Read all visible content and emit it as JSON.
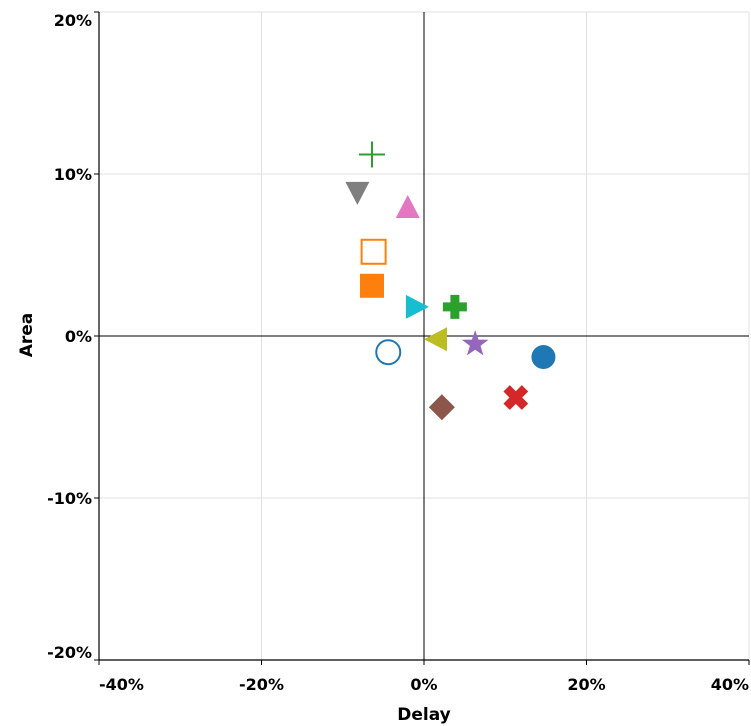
{
  "chart_data": {
    "type": "scatter",
    "title": "",
    "xlabel": "Delay",
    "ylabel": "Area",
    "xlim": [
      -40,
      40
    ],
    "ylim": [
      -20,
      20
    ],
    "x_ticks": [
      "-40%",
      "-20%",
      "0%",
      "20%",
      "40%"
    ],
    "y_ticks": [
      "20%",
      "10%",
      "0%",
      "-10%",
      "-20%"
    ],
    "x_tick_values": [
      -40,
      -20,
      0,
      20,
      40
    ],
    "y_tick_values": [
      20,
      10,
      0,
      -10,
      -20
    ],
    "grid": true,
    "zero_lines": true,
    "points": [
      {
        "x": 14.7,
        "y": -1.3,
        "marker": "filled-circle",
        "color": "#1f77b4"
      },
      {
        "x": -4.4,
        "y": -1.0,
        "marker": "open-circle",
        "color": "#1f77b4"
      },
      {
        "x": -6.4,
        "y": 3.1,
        "marker": "filled-square",
        "color": "#ff7f0e"
      },
      {
        "x": -6.2,
        "y": 5.2,
        "marker": "open-square",
        "color": "#ff7f0e"
      },
      {
        "x": 3.8,
        "y": 1.8,
        "marker": "filled-plus",
        "color": "#2ca02c"
      },
      {
        "x": -6.4,
        "y": 11.2,
        "marker": "thin-plus",
        "color": "#2ca02c"
      },
      {
        "x": 11.3,
        "y": -3.8,
        "marker": "filled-x",
        "color": "#d62728"
      },
      {
        "x": 6.3,
        "y": -0.5,
        "marker": "star",
        "color": "#9467bd"
      },
      {
        "x": 2.2,
        "y": -4.4,
        "marker": "diamond",
        "color": "#8c564b"
      },
      {
        "x": -2.0,
        "y": 7.9,
        "marker": "triangle-up",
        "color": "#e377c2"
      },
      {
        "x": -8.2,
        "y": 8.9,
        "marker": "triangle-down",
        "color": "#7f7f7f"
      },
      {
        "x": 1.6,
        "y": -0.2,
        "marker": "triangle-left",
        "color": "#bcbd22"
      },
      {
        "x": -1.0,
        "y": 1.8,
        "marker": "triangle-right",
        "color": "#17becf"
      }
    ]
  }
}
